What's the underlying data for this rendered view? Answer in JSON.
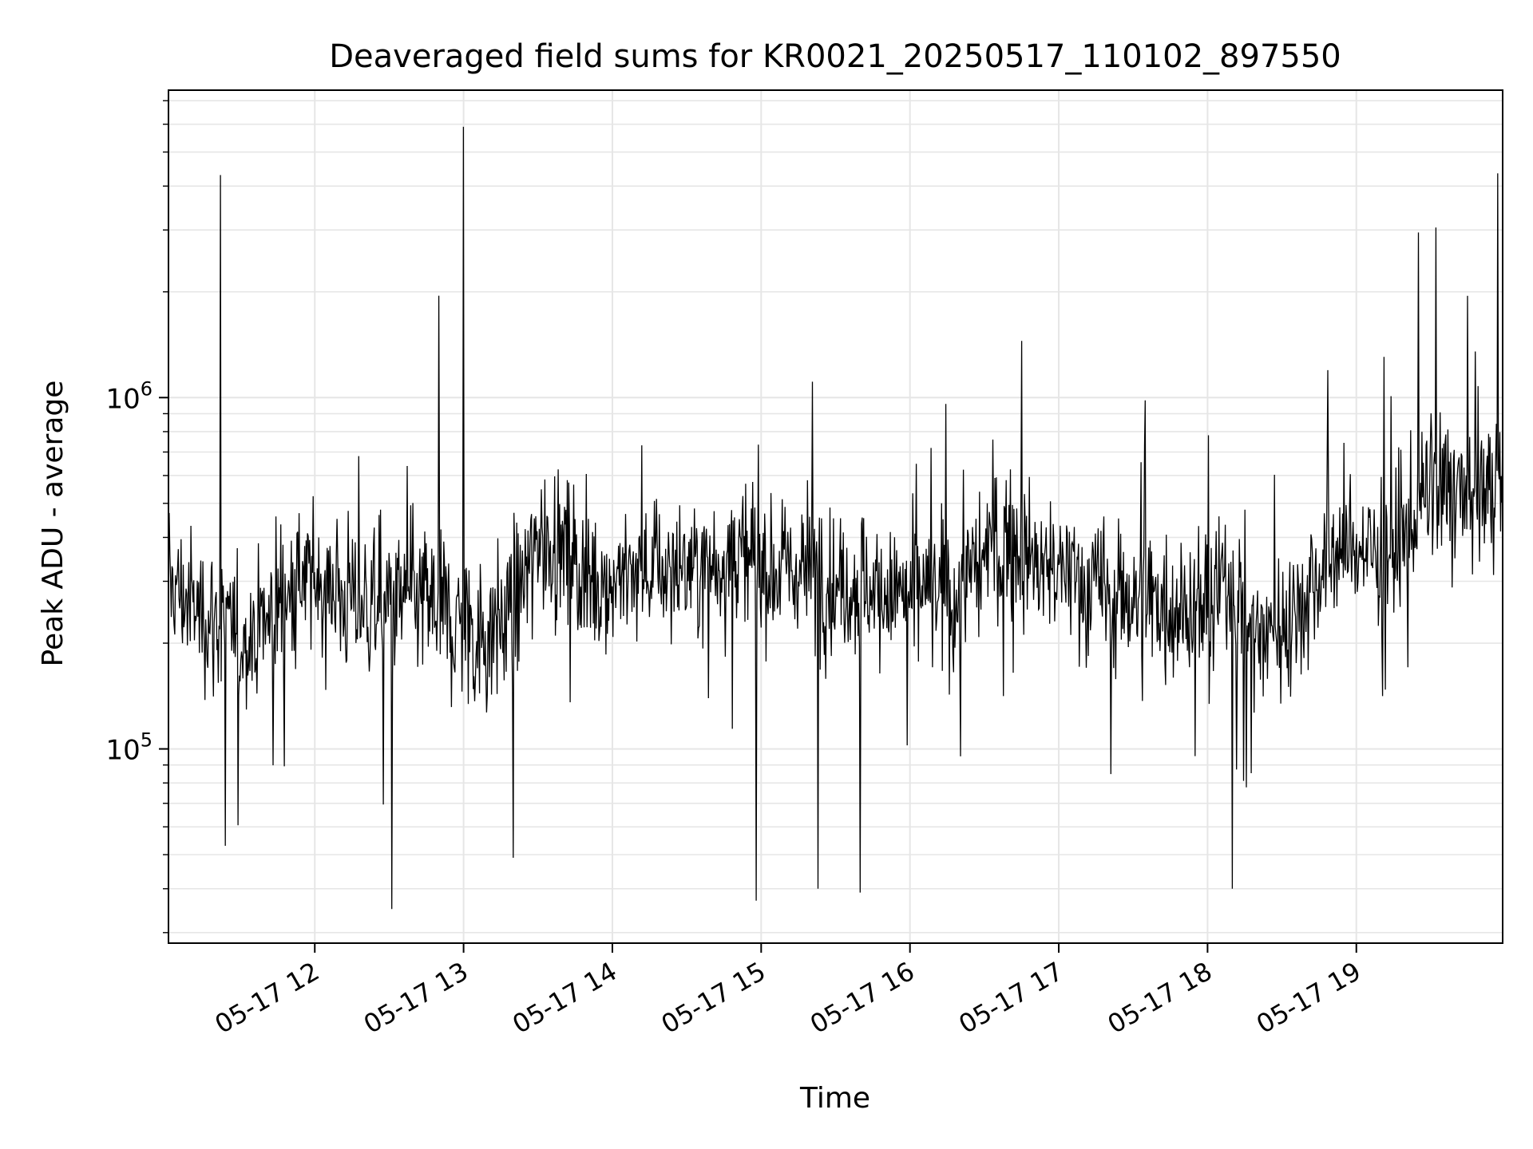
{
  "chart_data": {
    "type": "line",
    "title": "Deaveraged field sums for KR0021_20250517_110102_897550",
    "xlabel": "Time",
    "ylabel": "Peak ADU - average",
    "yscale": "log",
    "ylim": [
      28000,
      7500000
    ],
    "xlim": [
      "2025-05-17 11:01",
      "2025-05-17 19:59"
    ],
    "grid": true,
    "line_color": "#000000",
    "x_ticks": [
      "05-17 12",
      "05-17 13",
      "05-17 14",
      "05-17 15",
      "05-17 16",
      "05-17 17",
      "05-17 18",
      "05-17 19"
    ],
    "x_tick_times": [
      "2025-05-17 12:00",
      "2025-05-17 13:00",
      "2025-05-17 14:00",
      "2025-05-17 15:00",
      "2025-05-17 16:00",
      "2025-05-17 17:00",
      "2025-05-17 18:00",
      "2025-05-17 19:00"
    ],
    "y_ticks": [
      {
        "base": "10",
        "exp": "5",
        "value": 100000
      },
      {
        "base": "10",
        "exp": "6",
        "value": 1000000
      }
    ],
    "series": [
      {
        "x": [
          "2025-05-17 11:01",
          "2025-05-17 11:10",
          "2025-05-17 11:20",
          "2025-05-17 11:30",
          "2025-05-17 11:40",
          "2025-05-17 11:50",
          "2025-05-17 12:00",
          "2025-05-17 12:10",
          "2025-05-17 12:20",
          "2025-05-17 12:30",
          "2025-05-17 12:40",
          "2025-05-17 12:50",
          "2025-05-17 13:00",
          "2025-05-17 13:10",
          "2025-05-17 13:20",
          "2025-05-17 13:30",
          "2025-05-17 13:40",
          "2025-05-17 13:50",
          "2025-05-17 14:00",
          "2025-05-17 14:10",
          "2025-05-17 14:20",
          "2025-05-17 14:30",
          "2025-05-17 14:40",
          "2025-05-17 14:50",
          "2025-05-17 15:00",
          "2025-05-17 15:10",
          "2025-05-17 15:20",
          "2025-05-17 15:30",
          "2025-05-17 15:40",
          "2025-05-17 15:50",
          "2025-05-17 16:00",
          "2025-05-17 16:10",
          "2025-05-17 16:20",
          "2025-05-17 16:30",
          "2025-05-17 16:40",
          "2025-05-17 16:50",
          "2025-05-17 17:00",
          "2025-05-17 17:10",
          "2025-05-17 17:20",
          "2025-05-17 17:30",
          "2025-05-17 17:40",
          "2025-05-17 17:50",
          "2025-05-17 18:00",
          "2025-05-17 18:10",
          "2025-05-17 18:20",
          "2025-05-17 18:30",
          "2025-05-17 18:40",
          "2025-05-17 18:50",
          "2025-05-17 19:00",
          "2025-05-17 19:10",
          "2025-05-17 19:20",
          "2025-05-17 19:30",
          "2025-05-17 19:40",
          "2025-05-17 19:50",
          "2025-05-17 19:59"
        ],
        "y": [
          300000,
          250000,
          230000,
          200000,
          230000,
          280000,
          300000,
          280000,
          250000,
          250000,
          270000,
          260000,
          230000,
          210000,
          260000,
          380000,
          400000,
          300000,
          300000,
          320000,
          330000,
          320000,
          340000,
          360000,
          330000,
          320000,
          330000,
          300000,
          290000,
          280000,
          270000,
          270000,
          270000,
          360000,
          400000,
          330000,
          320000,
          300000,
          280000,
          270000,
          270000,
          260000,
          250000,
          300000,
          210000,
          220000,
          280000,
          360000,
          380000,
          350000,
          400000,
          550000,
          500000,
          530000,
          570000
        ],
        "envelope_low": [
          150000,
          140000,
          110000,
          100000,
          110000,
          140000,
          150000,
          130000,
          120000,
          110000,
          120000,
          110000,
          95000,
          90000,
          110000,
          170000,
          180000,
          150000,
          150000,
          150000,
          160000,
          150000,
          160000,
          170000,
          160000,
          150000,
          150000,
          140000,
          140000,
          130000,
          130000,
          130000,
          130000,
          160000,
          190000,
          160000,
          150000,
          140000,
          120000,
          120000,
          120000,
          120000,
          110000,
          130000,
          100000,
          100000,
          130000,
          160000,
          180000,
          180000,
          200000,
          280000,
          250000,
          260000,
          300000
        ],
        "envelope_high": [
          650000,
          550000,
          500000,
          450000,
          500000,
          650000,
          650000,
          600000,
          550000,
          550000,
          600000,
          550000,
          500000,
          450000,
          550000,
          800000,
          800000,
          650000,
          650000,
          650000,
          700000,
          650000,
          700000,
          750000,
          700000,
          650000,
          700000,
          650000,
          600000,
          600000,
          580000,
          580000,
          580000,
          800000,
          900000,
          700000,
          650000,
          620000,
          600000,
          580000,
          580000,
          560000,
          540000,
          700000,
          450000,
          480000,
          600000,
          800000,
          850000,
          800000,
          950000,
          1300000,
          1150000,
          1200000,
          1200000
        ],
        "spikes": [
          {
            "x": "2025-05-17 11:22",
            "y": 4300000
          },
          {
            "x": "2025-05-17 11:24",
            "y": 53000
          },
          {
            "x": "2025-05-17 12:31",
            "y": 35000
          },
          {
            "x": "2025-05-17 12:50",
            "y": 1950000
          },
          {
            "x": "2025-05-17 13:00",
            "y": 5900000
          },
          {
            "x": "2025-05-17 13:20",
            "y": 49000
          },
          {
            "x": "2025-05-17 14:58",
            "y": 37000
          },
          {
            "x": "2025-05-17 15:23",
            "y": 40000
          },
          {
            "x": "2025-05-17 15:40",
            "y": 39000
          },
          {
            "x": "2025-05-17 16:45",
            "y": 1450000
          },
          {
            "x": "2025-05-17 18:10",
            "y": 40000
          },
          {
            "x": "2025-05-17 19:25",
            "y": 2950000
          },
          {
            "x": "2025-05-17 19:32",
            "y": 3050000
          },
          {
            "x": "2025-05-17 19:57",
            "y": 4350000
          }
        ]
      }
    ]
  }
}
